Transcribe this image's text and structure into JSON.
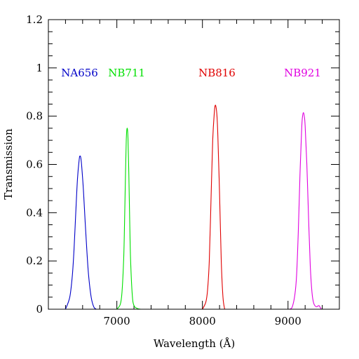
{
  "chart_data": {
    "type": "line",
    "title": "",
    "xlabel": "Wavelength (Å)",
    "ylabel": "Transmission",
    "xlim": [
      6200,
      9600
    ],
    "ylim": [
      0,
      1.2
    ],
    "x_ticks": [
      7000,
      8000,
      9000
    ],
    "x_tick_labels": [
      "7000",
      "8000",
      "9000"
    ],
    "y_ticks": [
      0,
      0.2,
      0.4,
      0.6,
      0.8,
      1,
      1.2
    ],
    "y_tick_labels": [
      "0",
      "0.2",
      "0.4",
      "0.6",
      "0.8",
      "1",
      "1.2"
    ],
    "x_minor_step": 200,
    "y_minor_step": 0.05,
    "grid": false,
    "series": [
      {
        "name": "NA656",
        "color": "#0000c8",
        "label_x": 6565,
        "label_y": 0.965,
        "x": [
          6400,
          6450,
          6480,
          6500,
          6520,
          6540,
          6560,
          6570,
          6580,
          6590,
          6610,
          6630,
          6650,
          6670,
          6700,
          6730,
          6760
        ],
        "y": [
          0.0,
          0.05,
          0.14,
          0.25,
          0.4,
          0.54,
          0.62,
          0.635,
          0.625,
          0.59,
          0.49,
          0.36,
          0.24,
          0.14,
          0.05,
          0.01,
          0.0
        ]
      },
      {
        "name": "NB711",
        "color": "#00e000",
        "label_x": 7115,
        "label_y": 0.965,
        "x": [
          7000,
          7040,
          7060,
          7080,
          7090,
          7100,
          7110,
          7120,
          7130,
          7140,
          7150,
          7160,
          7180,
          7200,
          7240,
          7280
        ],
        "y": [
          0.0,
          0.02,
          0.07,
          0.21,
          0.36,
          0.54,
          0.7,
          0.75,
          0.71,
          0.56,
          0.37,
          0.21,
          0.06,
          0.015,
          0.003,
          0.0
        ]
      },
      {
        "name": "NB816",
        "color": "#e00000",
        "label_x": 8170,
        "label_y": 0.965,
        "x": [
          8000,
          8040,
          8060,
          8080,
          8100,
          8120,
          8140,
          8150,
          8160,
          8170,
          8180,
          8200,
          8220,
          8240,
          8260
        ],
        "y": [
          0.0,
          0.03,
          0.08,
          0.2,
          0.45,
          0.7,
          0.82,
          0.845,
          0.835,
          0.8,
          0.72,
          0.48,
          0.2,
          0.05,
          0.0
        ]
      },
      {
        "name": "NB921",
        "color": "#e000e0",
        "label_x": 9170,
        "label_y": 0.965,
        "x": [
          9020,
          9050,
          9080,
          9100,
          9120,
          9140,
          9160,
          9170,
          9180,
          9190,
          9200,
          9220,
          9240,
          9260,
          9280,
          9300,
          9330,
          9360,
          9380,
          9390
        ],
        "y": [
          0.0,
          0.01,
          0.06,
          0.14,
          0.32,
          0.56,
          0.75,
          0.8,
          0.815,
          0.8,
          0.76,
          0.6,
          0.38,
          0.18,
          0.07,
          0.025,
          0.01,
          0.015,
          0.005,
          0.0
        ]
      }
    ]
  }
}
